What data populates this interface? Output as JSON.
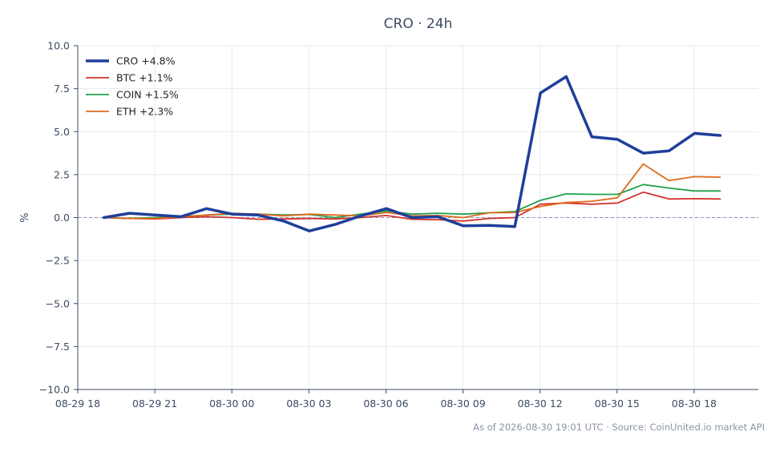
{
  "chart_data": {
    "type": "line",
    "title": "CRO · 24h",
    "ylabel": "%",
    "xlabel": "",
    "ylim": [
      -10,
      10
    ],
    "y_ticks": [
      10.0,
      7.5,
      5.0,
      2.5,
      0.0,
      -2.5,
      -5.0,
      -7.5,
      -10.0
    ],
    "y_tick_labels": [
      "10.0",
      "7.5",
      "5.0",
      "2.5",
      "0.0",
      "−2.5",
      "−5.0",
      "−7.5",
      "−10.0"
    ],
    "xlim": [
      "2026-08-29 18:00",
      "2026-08-30 20:30"
    ],
    "x_ticks": [
      "2026-08-29 18:00",
      "2026-08-29 21:00",
      "2026-08-30 00:00",
      "2026-08-30 03:00",
      "2026-08-30 06:00",
      "2026-08-30 09:00",
      "2026-08-30 12:00",
      "2026-08-30 15:00",
      "2026-08-30 18:00"
    ],
    "x_tick_labels": [
      "08-29 18",
      "08-29 21",
      "08-30 00",
      "08-30 03",
      "08-30 06",
      "08-30 09",
      "08-30 12",
      "08-30 15",
      "08-30 18"
    ],
    "x": [
      "2026-08-29 19:01",
      "2026-08-29 20:01",
      "2026-08-29 21:01",
      "2026-08-29 22:01",
      "2026-08-29 23:01",
      "2026-08-30 00:01",
      "2026-08-30 01:01",
      "2026-08-30 02:01",
      "2026-08-30 03:01",
      "2026-08-30 04:01",
      "2026-08-30 05:01",
      "2026-08-30 06:01",
      "2026-08-30 07:01",
      "2026-08-30 08:01",
      "2026-08-30 09:01",
      "2026-08-30 10:01",
      "2026-08-30 11:01",
      "2026-08-30 12:01",
      "2026-08-30 13:01",
      "2026-08-30 14:01",
      "2026-08-30 15:01",
      "2026-08-30 16:01",
      "2026-08-30 17:01",
      "2026-08-30 18:01",
      "2026-08-30 19:01"
    ],
    "grid": true,
    "zero_line": true,
    "legend_position": "top-left",
    "series": [
      {
        "name": "CRO +4.8%",
        "color": "#1f3f99",
        "emphasis": true,
        "values": [
          0.0,
          0.25,
          0.15,
          0.05,
          0.52,
          0.2,
          0.15,
          -0.2,
          -0.78,
          -0.4,
          0.1,
          0.52,
          0.0,
          0.05,
          -0.48,
          -0.45,
          -0.52,
          7.25,
          8.2,
          4.7,
          4.55,
          3.75,
          3.88,
          4.9,
          4.78
        ]
      },
      {
        "name": "BTC +1.1%",
        "color": "#d0332d",
        "emphasis": false,
        "values": [
          0.0,
          -0.05,
          -0.08,
          0.0,
          0.05,
          0.0,
          -0.1,
          -0.08,
          -0.05,
          -0.08,
          0.0,
          0.12,
          -0.1,
          -0.12,
          -0.2,
          -0.05,
          0.0,
          0.78,
          0.85,
          0.78,
          0.85,
          1.48,
          1.08,
          1.1,
          1.08
        ]
      },
      {
        "name": "COIN +1.5%",
        "color": "#22a04b",
        "emphasis": false,
        "values": [
          0.0,
          -0.05,
          0.0,
          0.05,
          0.15,
          0.2,
          0.2,
          0.15,
          0.18,
          0.0,
          0.2,
          0.38,
          0.2,
          0.25,
          0.2,
          0.28,
          0.35,
          1.0,
          1.38,
          1.35,
          1.35,
          1.92,
          1.72,
          1.55,
          1.55
        ]
      },
      {
        "name": "ETH +2.3%",
        "color": "#e06a1b",
        "emphasis": false,
        "values": [
          0.0,
          -0.05,
          -0.05,
          0.05,
          0.15,
          0.25,
          0.2,
          0.1,
          0.2,
          0.15,
          0.1,
          0.3,
          0.1,
          0.12,
          0.0,
          0.28,
          0.3,
          0.65,
          0.88,
          0.95,
          1.15,
          3.12,
          2.15,
          2.38,
          2.35
        ]
      }
    ]
  },
  "footer": "As of 2026-08-30 19:01 UTC · Source: CoinUnited.io market API"
}
